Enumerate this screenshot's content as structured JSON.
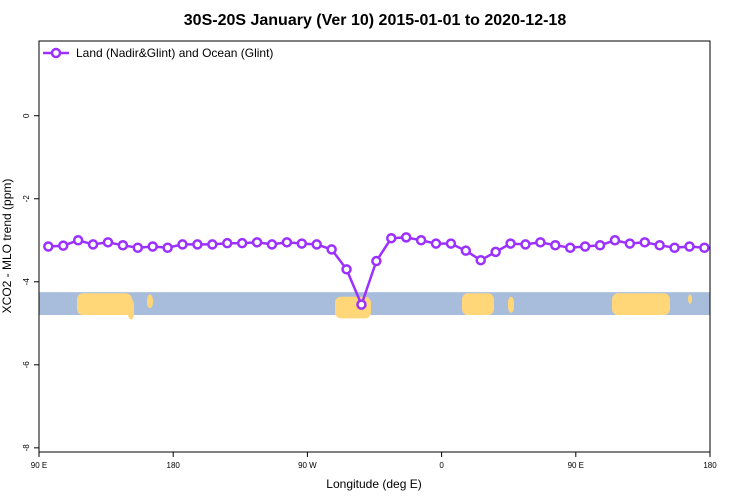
{
  "chart_data": {
    "type": "line",
    "title": "30S-20S January (Ver 10)   2015-01-01 to 2020-12-18",
    "xlabel": "Longitude (deg E)",
    "ylabel": "XCO2 - MLO trend (ppm)",
    "xlim": [
      0,
      360
    ],
    "ylim": [
      -8.1,
      1.8
    ],
    "x_ticks": [
      {
        "value": 0,
        "label": "90 E"
      },
      {
        "value": 72,
        "label": "180"
      },
      {
        "value": 144,
        "label": "90 W"
      },
      {
        "value": 216,
        "label": "0"
      },
      {
        "value": 288,
        "label": "90 E"
      },
      {
        "value": 360,
        "label": "180"
      }
    ],
    "y_ticks": [
      {
        "value": 0,
        "label": "0"
      },
      {
        "value": -2,
        "label": "-2"
      },
      {
        "value": -4,
        "label": "-4"
      },
      {
        "value": -6,
        "label": "-6"
      },
      {
        "value": -8,
        "label": "-8"
      }
    ],
    "legend": {
      "position": "top-left"
    },
    "series": [
      {
        "name": "Land (Nadir&Glint) and Ocean (Glint)",
        "color": "#9b30ff",
        "x": [
          5,
          13,
          21,
          29,
          37,
          45,
          53,
          61,
          69,
          77,
          85,
          93,
          101,
          109,
          117,
          125,
          133,
          141,
          149,
          157,
          165,
          173,
          181,
          189,
          197,
          205,
          213,
          221,
          229,
          237,
          245,
          253,
          261,
          269,
          277,
          285,
          293,
          301,
          309,
          317,
          325,
          333,
          341,
          349,
          357
        ],
        "y": [
          -3.15,
          -3.13,
          -3.0,
          -3.1,
          -3.05,
          -3.12,
          -3.18,
          -3.15,
          -3.18,
          -3.1,
          -3.1,
          -3.1,
          -3.07,
          -3.07,
          -3.05,
          -3.1,
          -3.05,
          -3.08,
          -3.1,
          -3.22,
          -3.7,
          -4.55,
          -3.5,
          -2.95,
          -2.93,
          -3.0,
          -3.08,
          -3.08,
          -3.25,
          -3.48,
          -3.28,
          -3.08,
          -3.1,
          -3.05,
          -3.12,
          -3.18,
          -3.15,
          -3.12,
          -3.0,
          -3.08,
          -3.05,
          -3.12,
          -3.18,
          -3.15,
          -3.18
        ]
      }
    ],
    "map_strip": {
      "y_range": [
        -4.25,
        -4.8
      ],
      "ocean_color": "#a8bcdc",
      "land_color": "#ffd778"
    }
  }
}
